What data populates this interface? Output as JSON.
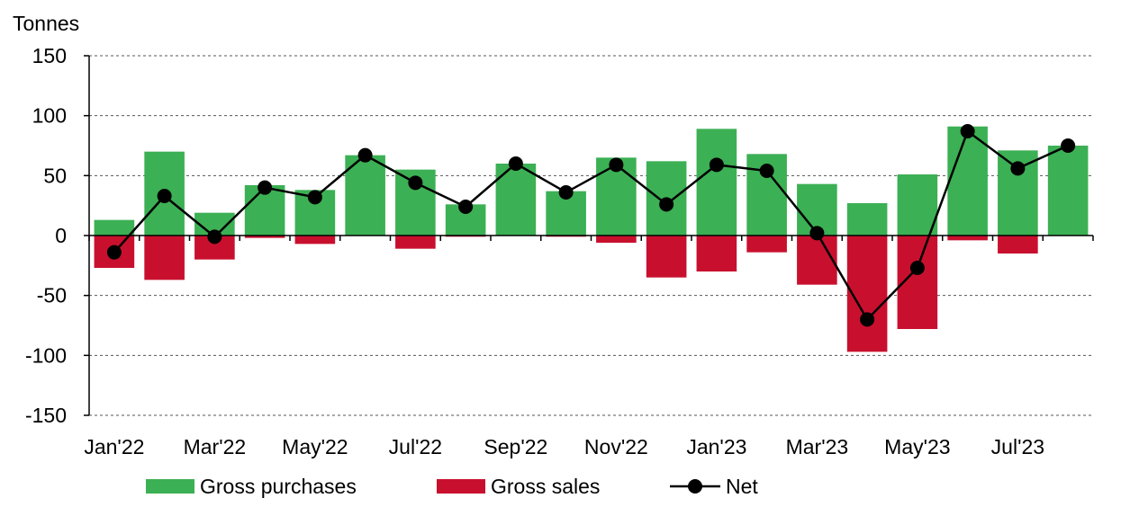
{
  "chart_data": {
    "type": "bar",
    "unit_label": "Tonnes",
    "ylim": [
      -150,
      150
    ],
    "y_ticks": [
      150,
      100,
      50,
      0,
      -50,
      -100,
      -150
    ],
    "y_tick_labels": [
      "150",
      "100",
      "50",
      "0",
      "-50",
      "-100",
      "-150"
    ],
    "grid": "horizontal dashed",
    "categories": [
      "Jan'22",
      "Feb'22",
      "Mar'22",
      "Apr'22",
      "May'22",
      "Jun'22",
      "Jul'22",
      "Aug'22",
      "Sep'22",
      "Oct'22",
      "Nov'22",
      "Dec'22",
      "Jan'23",
      "Feb'23",
      "Mar'23",
      "Apr'23",
      "May'23",
      "Jun'23",
      "Jul'23",
      "Aug'23"
    ],
    "x_tick_labels": [
      "Jan'22",
      "Mar'22",
      "May'22",
      "Jul'22",
      "Sep'22",
      "Nov'22",
      "Jan'23",
      "Mar'23",
      "May'23",
      "Jul'23"
    ],
    "legend_position": "bottom",
    "series": [
      {
        "name": "Gross purchases",
        "kind": "bar",
        "color": "#3cb054",
        "values": [
          13,
          70,
          19,
          42,
          38,
          67,
          55,
          26,
          60,
          37,
          65,
          62,
          89,
          68,
          43,
          27,
          51,
          91,
          71,
          75
        ]
      },
      {
        "name": "Gross sales",
        "kind": "bar",
        "color": "#c8102e",
        "values": [
          -27,
          -37,
          -20,
          -2,
          -7,
          0,
          -11,
          -1,
          0,
          -1,
          -6,
          -35,
          -30,
          -14,
          -41,
          -97,
          -78,
          -4,
          -15,
          0
        ]
      },
      {
        "name": "Net",
        "kind": "line",
        "color": "#000000",
        "values": [
          -14,
          33,
          -1,
          40,
          32,
          67,
          44,
          24,
          60,
          36,
          59,
          26,
          59,
          54,
          2,
          -70,
          -27,
          87,
          56,
          75
        ]
      }
    ]
  }
}
